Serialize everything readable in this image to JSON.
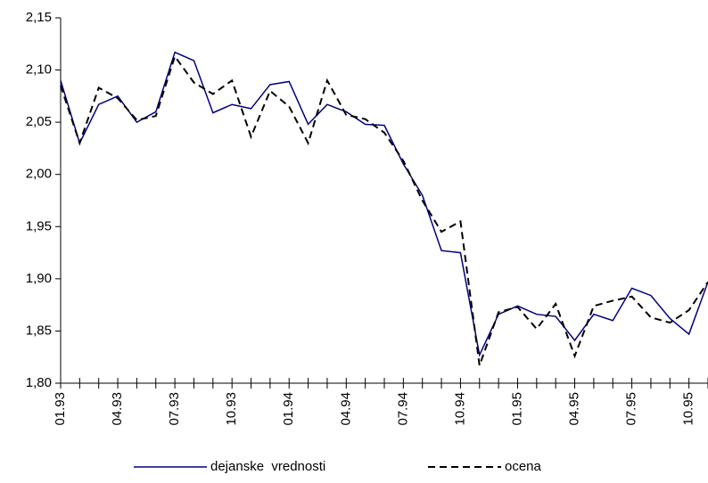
{
  "chart_data": {
    "type": "line",
    "categories": [
      "01.93",
      null,
      null,
      "04.93",
      null,
      null,
      "07.93",
      null,
      null,
      "10.93",
      null,
      null,
      "01.94",
      null,
      null,
      "04.94",
      null,
      null,
      "07.94",
      null,
      null,
      "10.94",
      null,
      null,
      "01.95",
      null,
      null,
      "04.95",
      null,
      null,
      "07.95",
      null,
      null,
      "10.95",
      null
    ],
    "series": [
      {
        "name": "dejanske  vrednosti",
        "color": "#000080",
        "dash": false,
        "values": [
          2.09,
          2.03,
          2.067,
          2.075,
          2.05,
          2.06,
          2.117,
          2.109,
          2.059,
          2.067,
          2.063,
          2.086,
          2.089,
          2.048,
          2.067,
          2.06,
          2.048,
          2.047,
          2.01,
          1.98,
          1.927,
          1.925,
          1.827,
          1.866,
          1.874,
          1.866,
          1.864,
          1.841,
          1.866,
          1.86,
          1.891,
          1.884,
          1.862,
          1.847,
          1.897
        ]
      },
      {
        "name": "ocena",
        "color": "#000000",
        "dash": true,
        "values": [
          2.085,
          2.03,
          2.083,
          2.073,
          2.052,
          2.056,
          2.113,
          2.088,
          2.077,
          2.09,
          2.036,
          2.08,
          2.065,
          2.03,
          2.09,
          2.057,
          2.053,
          2.04,
          2.013,
          1.975,
          1.945,
          1.955,
          1.817,
          1.868,
          1.873,
          1.852,
          1.876,
          1.826,
          1.874,
          1.879,
          1.883,
          1.863,
          1.858,
          1.87,
          1.897
        ]
      }
    ],
    "ylim": [
      1.8,
      2.15
    ],
    "yticks": [
      {
        "value": 1.8,
        "label": "1,80"
      },
      {
        "value": 1.85,
        "label": "1,85"
      },
      {
        "value": 1.9,
        "label": "1,90"
      },
      {
        "value": 1.95,
        "label": "1,95"
      },
      {
        "value": 2.0,
        "label": "2,00"
      },
      {
        "value": 2.05,
        "label": "2,05"
      },
      {
        "value": 2.1,
        "label": "2,10"
      },
      {
        "value": 2.15,
        "label": "2,15"
      }
    ],
    "legend": "bottom"
  }
}
